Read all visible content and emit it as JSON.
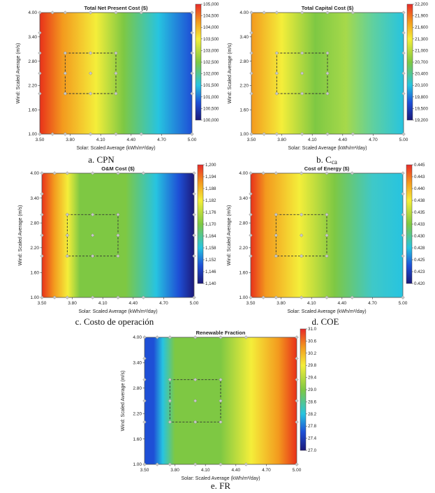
{
  "figure": {
    "captions": [
      "a. CPN",
      "b. C",
      "c. Costo de operación",
      "d. COE",
      "e. FR"
    ],
    "caption_b_subscript": "ca"
  },
  "colors": {
    "red": "#e8311a",
    "orange": "#f39a1e",
    "yellow": "#f4ee3a",
    "green": "#7ec843",
    "cyan": "#27c4e0",
    "blue": "#1e4fd6",
    "navy": "#1c1a7a"
  },
  "chart_data": [
    {
      "type": "heatmap",
      "title": "Total Net Present Cost ($)",
      "xlabel": "Solar: Scaled Average (kWh/m²/day)",
      "ylabel": "Wind: Scaled Average (m/s)",
      "xlim": [
        3.5,
        5.0
      ],
      "ylim": [
        1.0,
        4.0
      ],
      "x_ticks": [
        "3.50",
        "3.80",
        "4.10",
        "4.40",
        "4.70",
        "5.00"
      ],
      "y_ticks": [
        "1.00",
        "1.60",
        "2.20",
        "2.80",
        "3.40",
        "4.00"
      ],
      "colorbar_ticks": [
        "105,000",
        "104,500",
        "104,000",
        "103,500",
        "103,000",
        "102,500",
        "102,000",
        "101,500",
        "101,000",
        "100,500",
        "100,000"
      ],
      "value_trend": "decreases with solar (red at 3.50 to blue at 5.00)",
      "boxed_region": {
        "x": [
          3.75,
          4.25
        ],
        "y": [
          2.0,
          3.0
        ]
      }
    },
    {
      "type": "heatmap",
      "title": "Total Capital Cost ($)",
      "xlabel": "Solar: Scaled Average (kWh/m²/day)",
      "ylabel": "Wind: Scaled Average (m/s)",
      "xlim": [
        3.5,
        5.0
      ],
      "ylim": [
        1.0,
        4.0
      ],
      "x_ticks": [
        "3.50",
        "3.80",
        "4.10",
        "4.40",
        "4.70",
        "5.00"
      ],
      "y_ticks": [
        "1.00",
        "1.60",
        "2.20",
        "2.80",
        "3.40",
        "4.00"
      ],
      "colorbar_ticks": [
        "22,200",
        "21,900",
        "21,600",
        "21,300",
        "21,000",
        "20,700",
        "20,400",
        "20,100",
        "19,800",
        "19,500",
        "19,200"
      ],
      "value_trend": "decreases with solar (orange at 3.50 to cyan at 5.00)",
      "boxed_region": {
        "x": [
          3.75,
          4.25
        ],
        "y": [
          2.0,
          3.0
        ]
      }
    },
    {
      "type": "heatmap",
      "title": "O&M Cost ($)",
      "xlabel": "Solar: Scaled Average (kWh/m²/day)",
      "ylabel": "Wind: Scaled Average (m/s)",
      "xlim": [
        3.5,
        5.0
      ],
      "ylim": [
        1.0,
        4.0
      ],
      "x_ticks": [
        "3.50",
        "3.80",
        "4.10",
        "4.40",
        "4.70",
        "5.00"
      ],
      "y_ticks": [
        "1.00",
        "1.60",
        "2.20",
        "2.80",
        "3.40",
        "4.00"
      ],
      "colorbar_ticks": [
        "1,200",
        "1,194",
        "1,188",
        "1,182",
        "1,176",
        "1,170",
        "1,164",
        "1,158",
        "1,152",
        "1,146",
        "1,140"
      ],
      "value_trend": "decreases with solar (red at 3.50 to navy at 5.00)",
      "boxed_region": {
        "x": [
          3.75,
          4.25
        ],
        "y": [
          2.0,
          3.0
        ]
      }
    },
    {
      "type": "heatmap",
      "title": "Cost of Energy ($)",
      "xlabel": "Solar: Scaled Average (kWh/m²/day)",
      "ylabel": "Wind: Scaled Average (m/s)",
      "xlim": [
        3.5,
        5.0
      ],
      "ylim": [
        1.0,
        4.0
      ],
      "x_ticks": [
        "3.50",
        "3.80",
        "4.10",
        "4.40",
        "4.70",
        "5.00"
      ],
      "y_ticks": [
        "1.00",
        "1.60",
        "2.20",
        "2.80",
        "3.40",
        "4.00"
      ],
      "colorbar_ticks": [
        "0.445",
        "0.443",
        "0.440",
        "0.438",
        "0.435",
        "0.433",
        "0.430",
        "0.428",
        "0.425",
        "0.423",
        "0.420"
      ],
      "value_trend": "decreases with solar (red at 3.50 to cyan at 5.00)",
      "boxed_region": {
        "x": [
          3.75,
          4.25
        ],
        "y": [
          2.0,
          3.0
        ]
      }
    },
    {
      "type": "heatmap",
      "title": "Renewable Fraction",
      "xlabel": "Solar: Scaled Average (kWh/m²/day)",
      "ylabel": "Wind: Scaled Average (m/s)",
      "xlim": [
        3.5,
        5.0
      ],
      "ylim": [
        1.0,
        4.0
      ],
      "x_ticks": [
        "3.50",
        "3.80",
        "4.10",
        "4.40",
        "4.70",
        "5.00"
      ],
      "y_ticks": [
        "1.00",
        "1.60",
        "2.20",
        "2.80",
        "3.40",
        "4.00"
      ],
      "colorbar_ticks": [
        "31.0",
        "30.6",
        "30.2",
        "29.8",
        "29.4",
        "29.0",
        "28.6",
        "28.2",
        "27.8",
        "27.4",
        "27.0"
      ],
      "value_trend": "increases with solar (blue at 3.50 to red at 5.00)",
      "boxed_region": {
        "x": [
          3.75,
          4.25
        ],
        "y": [
          2.0,
          3.0
        ]
      }
    }
  ]
}
